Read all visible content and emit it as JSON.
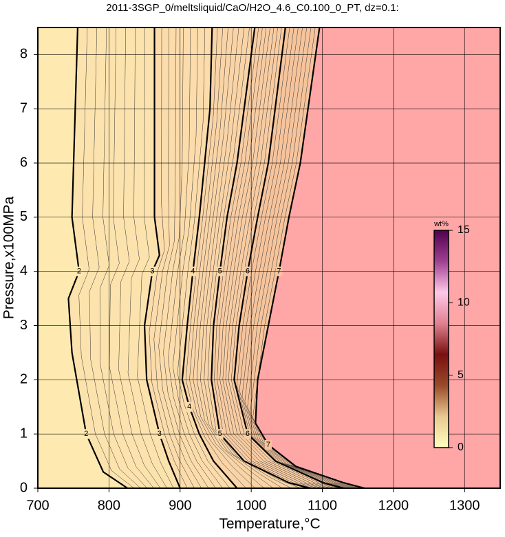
{
  "chart_data": {
    "type": "contour",
    "title": "2011-3SGP_0/meltsliquid/CaO/H2O_4.6_C0.100_0_PT, dz=0.1:",
    "xlabel": "Temperature,°C",
    "ylabel": "Pressure,x100MPa",
    "xlim": [
      700,
      1350
    ],
    "ylim": [
      0,
      8.5
    ],
    "xticks": [
      700,
      800,
      900,
      1000,
      1100,
      1200,
      1300
    ],
    "yticks": [
      0,
      1,
      2,
      3,
      4,
      5,
      6,
      7,
      8
    ],
    "grid": true,
    "background_color": "#ffa6a6",
    "contours": [
      {
        "level": 7,
        "color": "#f6c49c",
        "x": [
          1096,
          1069,
          1053,
          1039,
          1024,
          1009,
          1006,
          1024,
          1063,
          1130,
          1159
        ],
        "y": [
          8.5,
          6,
          5,
          4,
          3,
          2,
          1.2,
          0.8,
          0.4,
          0.1,
          0
        ]
      },
      {
        "level": 6,
        "color": "#f8cca2",
        "x": [
          1048,
          1024,
          1009,
          995,
          983,
          976,
          995,
          1034,
          1101,
          1130
        ],
        "y": [
          8.5,
          6,
          5,
          4,
          3,
          2,
          1,
          0.5,
          0.1,
          0
        ]
      },
      {
        "level": 5,
        "color": "#f9d4a6",
        "x": [
          1005,
          980,
          966,
          956,
          947,
          944,
          956,
          990,
          1053,
          1082
        ],
        "y": [
          8.5,
          6,
          5,
          4,
          3,
          2,
          1,
          0.5,
          0.1,
          0
        ]
      },
      {
        "level": 4,
        "color": "#fbdcaa",
        "x": [
          945,
          942,
          927,
          918,
          910,
          903,
          913,
          927,
          947,
          980
        ],
        "y": [
          8.5,
          7,
          5,
          4,
          3,
          2,
          1.5,
          1,
          0.5,
          0
        ]
      },
      {
        "level": 3,
        "color": "#fce3ad",
        "x": [
          864,
          864,
          871,
          861,
          850,
          853,
          871,
          884,
          900
        ],
        "y": [
          8.5,
          5,
          4.3,
          4,
          3,
          2,
          1,
          0.5,
          0
        ]
      },
      {
        "level": 2,
        "color": "#feeab0",
        "x": [
          756,
          748,
          758,
          743,
          748,
          768,
          792,
          826
        ],
        "y": [
          8.5,
          5,
          4,
          3.5,
          2.5,
          1,
          0.3,
          0
        ]
      }
    ],
    "colorbar": {
      "label": "wt%",
      "lim": [
        0,
        15
      ],
      "ticks": [
        0,
        5,
        10,
        15
      ],
      "colors": [
        "#ffffc0",
        "#e8c890",
        "#9a4a2a",
        "#7a1010",
        "#e08090",
        "#ffc8e8",
        "#a04090",
        "#500050"
      ]
    }
  }
}
